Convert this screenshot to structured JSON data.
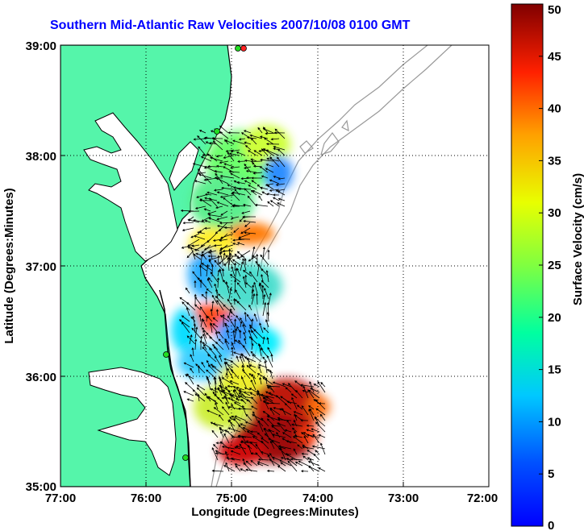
{
  "title": "Southern Mid-Atlantic Raw Velocities 2007/10/08 0100 GMT",
  "map": {
    "xlabel": "Longitude (Degrees:Minutes)",
    "ylabel": "Latitude (Degrees:Minutes)",
    "x_ticks": [
      "77:00",
      "76:00",
      "75:00",
      "74:00",
      "73:00",
      "72:00"
    ],
    "y_ticks": [
      "39:00",
      "38:00",
      "37:00",
      "36:00",
      "35:00"
    ],
    "lon_range": [
      -77,
      -72
    ],
    "lat_range": [
      35,
      39
    ],
    "grid": true,
    "land_color": "#55f5aa",
    "coast_color": "#000000",
    "bathymetry_color": "#999999",
    "station_marker_color": "#22dd22",
    "station_marker_highlight": "#ff2222"
  },
  "colorbar": {
    "label": "Surface Velocity (cm/s)",
    "min": 0,
    "max": 50,
    "ticks": [
      "0",
      "5",
      "10",
      "15",
      "20",
      "25",
      "30",
      "35",
      "40",
      "45",
      "50"
    ],
    "colormap": "jet"
  }
}
